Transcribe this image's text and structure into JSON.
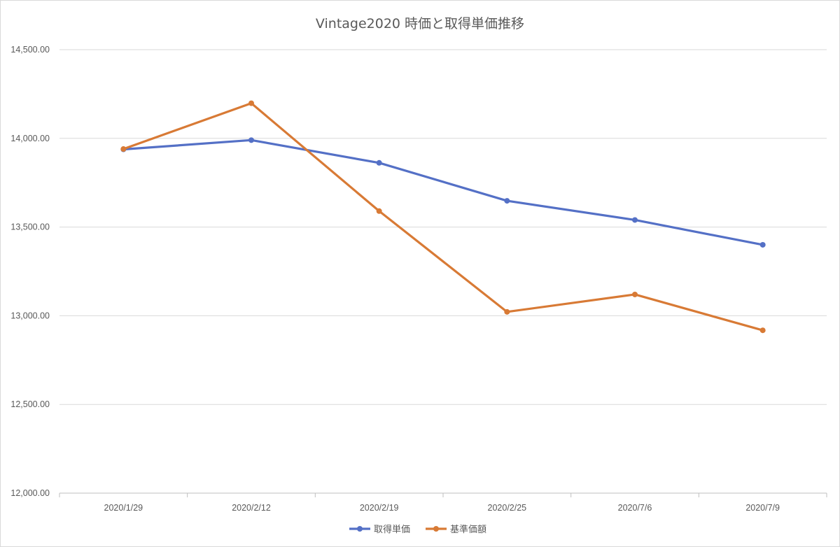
{
  "chart_data": {
    "type": "line",
    "title": "Vintage2020 時価と取得単価推移",
    "categories": [
      "2020/1/29",
      "2020/2/12",
      "2020/2/19",
      "2020/2/25",
      "2020/7/6",
      "2020/7/9"
    ],
    "series": [
      {
        "name": "取得単価",
        "color": "#5470c6",
        "values": [
          13938,
          13990,
          13862,
          13648,
          13540,
          13400
        ]
      },
      {
        "name": "基準価額",
        "color": "#d87a35",
        "values": [
          13940,
          14198,
          13590,
          13022,
          13120,
          12918
        ]
      }
    ],
    "ylim": [
      12000,
      14500
    ],
    "yticks": [
      "12,000.00",
      "12,500.00",
      "13,000.00",
      "13,500.00",
      "14,000.00",
      "14,500.00"
    ],
    "ytick_values": [
      12000,
      12500,
      13000,
      13500,
      14000,
      14500
    ],
    "grid": true,
    "legend": "bottom"
  }
}
